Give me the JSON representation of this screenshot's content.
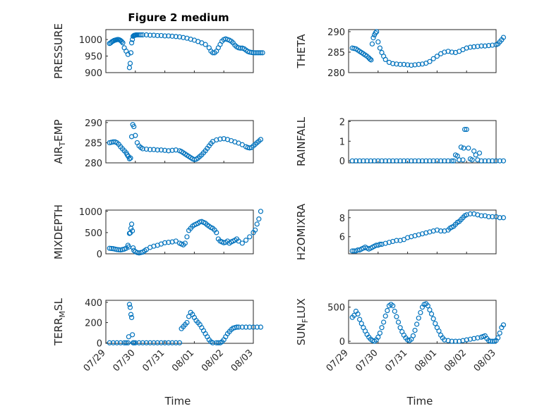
{
  "figure_title": "Figure 2 medium",
  "colors": {
    "marker": "#0072BD",
    "axis": "#262626",
    "grid": "#d9d9d9"
  },
  "chart_data": [
    {
      "type": "scatter",
      "title": "Figure 2 medium",
      "ylabel": "PRESSURE",
      "ylim": [
        900,
        1030
      ],
      "yticks": [
        "900",
        "950",
        "1000"
      ],
      "x": [
        0.1,
        0.13,
        0.16,
        0.19,
        0.22,
        0.25,
        0.28,
        0.31,
        0.34,
        0.37,
        0.4,
        0.43,
        0.46,
        0.5,
        0.55,
        0.6,
        0.64,
        0.66,
        0.68,
        0.7,
        0.72,
        0.74,
        0.76,
        0.78,
        0.8,
        0.82,
        0.85,
        0.9,
        0.95,
        1.0,
        1.1,
        1.2,
        1.3,
        1.4,
        1.5,
        1.6,
        1.7,
        1.8,
        1.9,
        2.0,
        2.1,
        2.2,
        2.3,
        2.4,
        2.5,
        2.6,
        2.7,
        2.8,
        2.85,
        2.9,
        2.95,
        3.0,
        3.05,
        3.1,
        3.15,
        3.2,
        3.25,
        3.3,
        3.35,
        3.4,
        3.45,
        3.5,
        3.55,
        3.6,
        3.65,
        3.7,
        3.75,
        3.8,
        3.85,
        3.9,
        3.95,
        4.0,
        4.05,
        4.1,
        4.15,
        4.2,
        4.25
      ],
      "y": [
        988,
        990,
        993,
        995,
        997,
        998,
        999,
        1000,
        1000,
        999,
        997,
        994,
        990,
        975,
        965,
        955,
        915,
        928,
        960,
        990,
        1000,
        1010,
        1012,
        1013,
        1013,
        1014,
        1014,
        1014,
        1014,
        1014,
        1014,
        1013,
        1013,
        1012,
        1012,
        1011,
        1011,
        1010,
        1009,
        1008,
        1006,
        1004,
        1001,
        998,
        994,
        990,
        985,
        975,
        965,
        960,
        960,
        965,
        975,
        985,
        995,
        1000,
        1002,
        1000,
        998,
        995,
        990,
        983,
        978,
        975,
        974,
        974,
        972,
        968,
        964,
        962,
        961,
        960,
        960,
        960,
        960,
        960,
        960
      ]
    },
    {
      "type": "scatter",
      "ylabel": "THETA",
      "ylim": [
        280,
        290.5
      ],
      "yticks": [
        "280",
        "285",
        "290"
      ],
      "x": [
        0.1,
        0.15,
        0.2,
        0.25,
        0.3,
        0.35,
        0.4,
        0.45,
        0.5,
        0.55,
        0.58,
        0.61,
        0.64,
        0.67,
        0.7,
        0.73,
        0.76,
        0.8,
        0.85,
        0.9,
        0.95,
        1.0,
        1.1,
        1.2,
        1.3,
        1.4,
        1.5,
        1.6,
        1.7,
        1.8,
        1.9,
        2.0,
        2.1,
        2.2,
        2.3,
        2.4,
        2.5,
        2.6,
        2.7,
        2.8,
        2.9,
        3.0,
        3.1,
        3.2,
        3.3,
        3.4,
        3.5,
        3.6,
        3.7,
        3.8,
        3.9,
        4.0,
        4.05,
        4.1,
        4.15,
        4.2
      ],
      "y": [
        286.0,
        285.9,
        285.8,
        285.5,
        285.2,
        284.9,
        284.6,
        284.3,
        284.0,
        283.6,
        283.3,
        283.1,
        287.0,
        288.5,
        289.2,
        289.7,
        290.0,
        287.5,
        286.0,
        284.9,
        284.0,
        283.2,
        282.5,
        282.2,
        282.1,
        282.0,
        282.0,
        281.9,
        281.8,
        281.9,
        282.0,
        282.1,
        282.3,
        282.7,
        283.4,
        284.0,
        284.6,
        285.0,
        285.2,
        285.0,
        284.9,
        285.2,
        285.6,
        286.0,
        286.2,
        286.3,
        286.4,
        286.5,
        286.5,
        286.6,
        286.7,
        286.8,
        287.0,
        287.5,
        288.0,
        288.6
      ]
    },
    {
      "type": "scatter",
      "ylabel": "AIR_TEMP",
      "ylim": [
        280,
        290.5
      ],
      "yticks": [
        "280",
        "285",
        "290"
      ],
      "x": [
        0.1,
        0.15,
        0.2,
        0.25,
        0.3,
        0.35,
        0.4,
        0.45,
        0.5,
        0.55,
        0.58,
        0.61,
        0.64,
        0.67,
        0.7,
        0.73,
        0.76,
        0.8,
        0.85,
        0.9,
        0.95,
        1.0,
        1.1,
        1.2,
        1.3,
        1.4,
        1.5,
        1.6,
        1.7,
        1.8,
        1.9,
        2.0,
        2.05,
        2.1,
        2.15,
        2.2,
        2.25,
        2.3,
        2.35,
        2.4,
        2.45,
        2.5,
        2.55,
        2.6,
        2.65,
        2.7,
        2.75,
        2.8,
        2.85,
        2.9,
        3.0,
        3.1,
        3.2,
        3.3,
        3.4,
        3.5,
        3.6,
        3.7,
        3.8,
        3.85,
        3.9,
        3.95,
        4.0,
        4.05,
        4.1,
        4.15,
        4.2
      ],
      "y": [
        285.0,
        285.1,
        285.2,
        285.2,
        285.0,
        284.6,
        284.0,
        283.5,
        283.0,
        282.5,
        282.0,
        281.6,
        281.0,
        281.2,
        286.5,
        289.5,
        289.0,
        286.8,
        285.0,
        284.2,
        283.8,
        283.5,
        283.4,
        283.3,
        283.3,
        283.2,
        283.2,
        283.1,
        283.0,
        283.1,
        283.2,
        283.0,
        282.8,
        282.5,
        282.2,
        281.9,
        281.6,
        281.3,
        281.0,
        280.8,
        280.9,
        281.2,
        281.6,
        282.0,
        282.5,
        283.0,
        283.6,
        284.2,
        284.8,
        285.3,
        285.7,
        285.9,
        286.0,
        285.8,
        285.5,
        285.2,
        284.9,
        284.5,
        284.0,
        283.8,
        283.7,
        283.8,
        284.2,
        284.6,
        285.0,
        285.4,
        285.8
      ]
    },
    {
      "type": "scatter",
      "ylabel": "RAINFALL",
      "ylim": [
        -0.1,
        2.05
      ],
      "yticks": [
        "0",
        "1",
        "2"
      ],
      "x": [
        0.1,
        0.2,
        0.3,
        0.4,
        0.5,
        0.6,
        0.7,
        0.8,
        0.9,
        1.0,
        1.1,
        1.2,
        1.3,
        1.4,
        1.5,
        1.6,
        1.7,
        1.8,
        1.9,
        2.0,
        2.1,
        2.2,
        2.3,
        2.4,
        2.5,
        2.6,
        2.7,
        2.8,
        2.85,
        2.9,
        2.95,
        3.0,
        3.05,
        3.1,
        3.12,
        3.15,
        3.2,
        3.25,
        3.3,
        3.35,
        3.4,
        3.45,
        3.5,
        3.55,
        3.6,
        3.7,
        3.8,
        3.9,
        4.0,
        4.1,
        4.2
      ],
      "y": [
        0,
        0,
        0,
        0,
        0,
        0,
        0,
        0,
        0,
        0,
        0,
        0,
        0,
        0,
        0,
        0,
        0,
        0,
        0,
        0,
        0,
        0,
        0,
        0,
        0,
        0,
        0,
        0,
        0,
        0.3,
        0.25,
        0.05,
        0.7,
        0.05,
        0.65,
        1.6,
        1.6,
        0.65,
        0.1,
        0.05,
        0.5,
        0.3,
        0.05,
        0.4,
        0,
        0,
        0,
        0,
        0,
        0,
        0
      ]
    },
    {
      "type": "scatter",
      "ylabel": "MIXDEPTH",
      "ylim": [
        0,
        1030
      ],
      "yticks": [
        "0",
        "500",
        "1000"
      ],
      "x": [
        0.1,
        0.15,
        0.2,
        0.25,
        0.3,
        0.35,
        0.4,
        0.45,
        0.5,
        0.55,
        0.6,
        0.62,
        0.64,
        0.66,
        0.68,
        0.7,
        0.72,
        0.74,
        0.76,
        0.8,
        0.85,
        0.9,
        0.95,
        1.0,
        1.05,
        1.1,
        1.2,
        1.3,
        1.4,
        1.5,
        1.6,
        1.7,
        1.8,
        1.9,
        2.0,
        2.05,
        2.1,
        2.15,
        2.2,
        2.25,
        2.3,
        2.35,
        2.4,
        2.45,
        2.5,
        2.55,
        2.6,
        2.65,
        2.7,
        2.75,
        2.8,
        2.85,
        2.9,
        2.95,
        3.0,
        3.05,
        3.1,
        3.15,
        3.2,
        3.25,
        3.3,
        3.35,
        3.4,
        3.45,
        3.5,
        3.55,
        3.6,
        3.7,
        3.8,
        3.9,
        4.0,
        4.05,
        4.1,
        4.15,
        4.2
      ],
      "y": [
        130,
        125,
        120,
        110,
        100,
        95,
        90,
        100,
        110,
        130,
        200,
        160,
        480,
        490,
        600,
        700,
        540,
        140,
        80,
        50,
        30,
        20,
        30,
        40,
        70,
        100,
        150,
        180,
        200,
        230,
        260,
        270,
        280,
        300,
        250,
        230,
        210,
        250,
        400,
        550,
        600,
        650,
        680,
        700,
        720,
        750,
        760,
        740,
        720,
        680,
        650,
        620,
        600,
        560,
        500,
        350,
        300,
        280,
        260,
        270,
        300,
        250,
        280,
        300,
        320,
        350,
        300,
        250,
        320,
        400,
        500,
        560,
        700,
        820,
        1000
      ]
    },
    {
      "type": "scatter",
      "ylabel": "H2OMIXRA",
      "ylim": [
        4.2,
        8.8
      ],
      "yticks": [
        "6",
        "8"
      ],
      "x": [
        0.1,
        0.15,
        0.2,
        0.25,
        0.3,
        0.35,
        0.4,
        0.45,
        0.5,
        0.55,
        0.6,
        0.65,
        0.7,
        0.75,
        0.8,
        0.85,
        0.9,
        1.0,
        1.1,
        1.2,
        1.3,
        1.4,
        1.5,
        1.6,
        1.7,
        1.8,
        1.9,
        2.0,
        2.1,
        2.2,
        2.3,
        2.4,
        2.5,
        2.6,
        2.7,
        2.75,
        2.8,
        2.85,
        2.9,
        2.95,
        3.0,
        3.05,
        3.1,
        3.15,
        3.2,
        3.3,
        3.4,
        3.5,
        3.6,
        3.7,
        3.8,
        3.9,
        4.0,
        4.1,
        4.2
      ],
      "y": [
        4.5,
        4.5,
        4.5,
        4.6,
        4.6,
        4.7,
        4.8,
        4.9,
        4.8,
        4.7,
        4.8,
        4.9,
        5.0,
        5.1,
        5.1,
        5.2,
        5.2,
        5.3,
        5.4,
        5.5,
        5.6,
        5.6,
        5.7,
        5.9,
        6.0,
        6.1,
        6.2,
        6.3,
        6.4,
        6.5,
        6.6,
        6.7,
        6.6,
        6.6,
        6.7,
        6.9,
        7.0,
        7.1,
        7.3,
        7.5,
        7.6,
        7.8,
        8.0,
        8.2,
        8.3,
        8.4,
        8.4,
        8.3,
        8.2,
        8.2,
        8.1,
        8.1,
        8.1,
        8.0,
        8.0
      ]
    },
    {
      "type": "scatter",
      "ylabel": "TERR_MSL",
      "ylim": [
        -5,
        420
      ],
      "yticks": [
        "0",
        "200",
        "400"
      ],
      "x": [
        0.1,
        0.2,
        0.3,
        0.4,
        0.5,
        0.55,
        0.6,
        0.62,
        0.64,
        0.66,
        0.68,
        0.7,
        0.72,
        0.74,
        0.76,
        0.8,
        0.9,
        1.0,
        1.1,
        1.2,
        1.3,
        1.4,
        1.5,
        1.6,
        1.7,
        1.8,
        1.9,
        2.0,
        2.05,
        2.1,
        2.15,
        2.2,
        2.25,
        2.3,
        2.35,
        2.4,
        2.45,
        2.5,
        2.55,
        2.6,
        2.65,
        2.7,
        2.75,
        2.8,
        2.85,
        2.9,
        3.0,
        3.05,
        3.1,
        3.15,
        3.2,
        3.25,
        3.3,
        3.35,
        3.4,
        3.45,
        3.5,
        3.55,
        3.6,
        3.7,
        3.8,
        3.9,
        4.0,
        4.1,
        4.2
      ],
      "y": [
        0,
        0,
        0,
        0,
        0,
        0,
        0,
        60,
        380,
        350,
        280,
        250,
        80,
        0,
        0,
        0,
        0,
        0,
        0,
        0,
        0,
        0,
        0,
        0,
        0,
        0,
        0,
        0,
        140,
        160,
        180,
        200,
        260,
        300,
        280,
        250,
        220,
        200,
        180,
        150,
        120,
        90,
        60,
        30,
        10,
        0,
        0,
        0,
        0,
        10,
        30,
        60,
        90,
        110,
        130,
        145,
        150,
        155,
        155,
        155,
        155,
        155,
        155,
        155,
        155
      ]
    },
    {
      "type": "scatter",
      "ylabel": "SUN_FLUX",
      "ylim": [
        -30,
        600
      ],
      "yticks": [
        "0",
        "500"
      ],
      "x": [
        0.1,
        0.15,
        0.2,
        0.25,
        0.3,
        0.35,
        0.4,
        0.45,
        0.5,
        0.55,
        0.6,
        0.65,
        0.7,
        0.75,
        0.8,
        0.85,
        0.9,
        0.95,
        1.0,
        1.05,
        1.1,
        1.15,
        1.2,
        1.25,
        1.3,
        1.35,
        1.4,
        1.45,
        1.5,
        1.55,
        1.6,
        1.65,
        1.7,
        1.75,
        1.8,
        1.85,
        1.9,
        1.95,
        2.0,
        2.05,
        2.1,
        2.15,
        2.2,
        2.25,
        2.3,
        2.35,
        2.4,
        2.45,
        2.5,
        2.55,
        2.6,
        2.7,
        2.8,
        2.9,
        3.0,
        3.1,
        3.2,
        3.3,
        3.4,
        3.5,
        3.6,
        3.65,
        3.7,
        3.75,
        3.8,
        3.85,
        3.9,
        3.95,
        4.0,
        4.05,
        4.1,
        4.15,
        4.2
      ],
      "y": [
        350,
        380,
        440,
        400,
        320,
        260,
        200,
        150,
        100,
        60,
        30,
        10,
        0,
        20,
        60,
        120,
        200,
        280,
        370,
        450,
        520,
        540,
        520,
        440,
        360,
        280,
        200,
        140,
        90,
        50,
        20,
        10,
        30,
        80,
        160,
        250,
        340,
        420,
        500,
        540,
        550,
        520,
        460,
        400,
        330,
        260,
        200,
        150,
        90,
        50,
        20,
        10,
        0,
        0,
        0,
        10,
        20,
        30,
        40,
        50,
        60,
        70,
        80,
        40,
        10,
        0,
        0,
        0,
        10,
        50,
        120,
        200,
        240
      ]
    }
  ],
  "x_axis": {
    "xlim": [
      0,
      4
    ],
    "ticks": [
      "07/29",
      "07/30",
      "07/31",
      "08/01",
      "08/02",
      "08/03"
    ],
    "tick_positions": [
      0,
      0.8,
      1.6,
      2.4,
      3.2,
      4.0
    ],
    "xlabel": "Time"
  }
}
